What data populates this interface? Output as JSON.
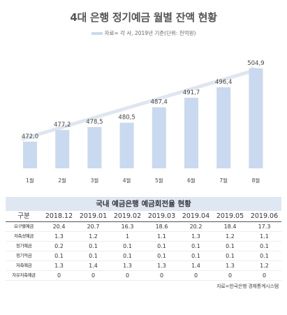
{
  "title": "4대 은행 정기예금 월별 잔액 현황",
  "legend_text": "자료= 각 사, 2019년 기준(단위: 천억원)",
  "colors": {
    "bar": "#c9d9ef",
    "trend": "#dfe6ef",
    "header_bg": "#dfe7f3"
  },
  "chart_data": {
    "type": "bar",
    "categories": [
      "1월",
      "2월",
      "3월",
      "4월",
      "5월",
      "6월",
      "7월",
      "8월"
    ],
    "values": [
      472.0,
      477.2,
      478.5,
      480.5,
      487.4,
      491.7,
      496.4,
      504.9
    ],
    "labels": [
      "472,0",
      "477,2",
      "478,5",
      "480,5",
      "487,4",
      "491,7",
      "496,4",
      "504,9"
    ],
    "ylim": [
      460,
      508
    ]
  },
  "table": {
    "title": "국내 예금은행 예금회전율 현황",
    "headers": [
      "구분",
      "2018.12",
      "2019.01",
      "2019.02",
      "2019.03",
      "2019.04",
      "2019.05",
      "2019.06"
    ],
    "rows": [
      {
        "label": "요구불예금",
        "values": [
          "20.4",
          "20.7",
          "16.3",
          "18.6",
          "20.2",
          "18.4",
          "17.3"
        ]
      },
      {
        "label": "저축성예금",
        "values": [
          "1.3",
          "1.2",
          "1",
          "1.1",
          "1.3",
          "1.2",
          "1.1"
        ]
      },
      {
        "label": "정기예금",
        "values": [
          "0.2",
          "0.1",
          "0.1",
          "0.1",
          "0.1",
          "0.1",
          "0.1"
        ]
      },
      {
        "label": "정기적금",
        "values": [
          "0.1",
          "0.1",
          "0.1",
          "0.1",
          "0.1",
          "0.1",
          "0.1"
        ]
      },
      {
        "label": "저축예금",
        "values": [
          "1.3",
          "1.4",
          "1.3",
          "1.3",
          "1.4",
          "1.3",
          "1.2"
        ]
      },
      {
        "label": "자유저축예금",
        "values": [
          "0",
          "0",
          "0",
          "0",
          "0",
          "0",
          "0"
        ]
      }
    ]
  },
  "source": "자료=한국은행 경제통계시스템"
}
